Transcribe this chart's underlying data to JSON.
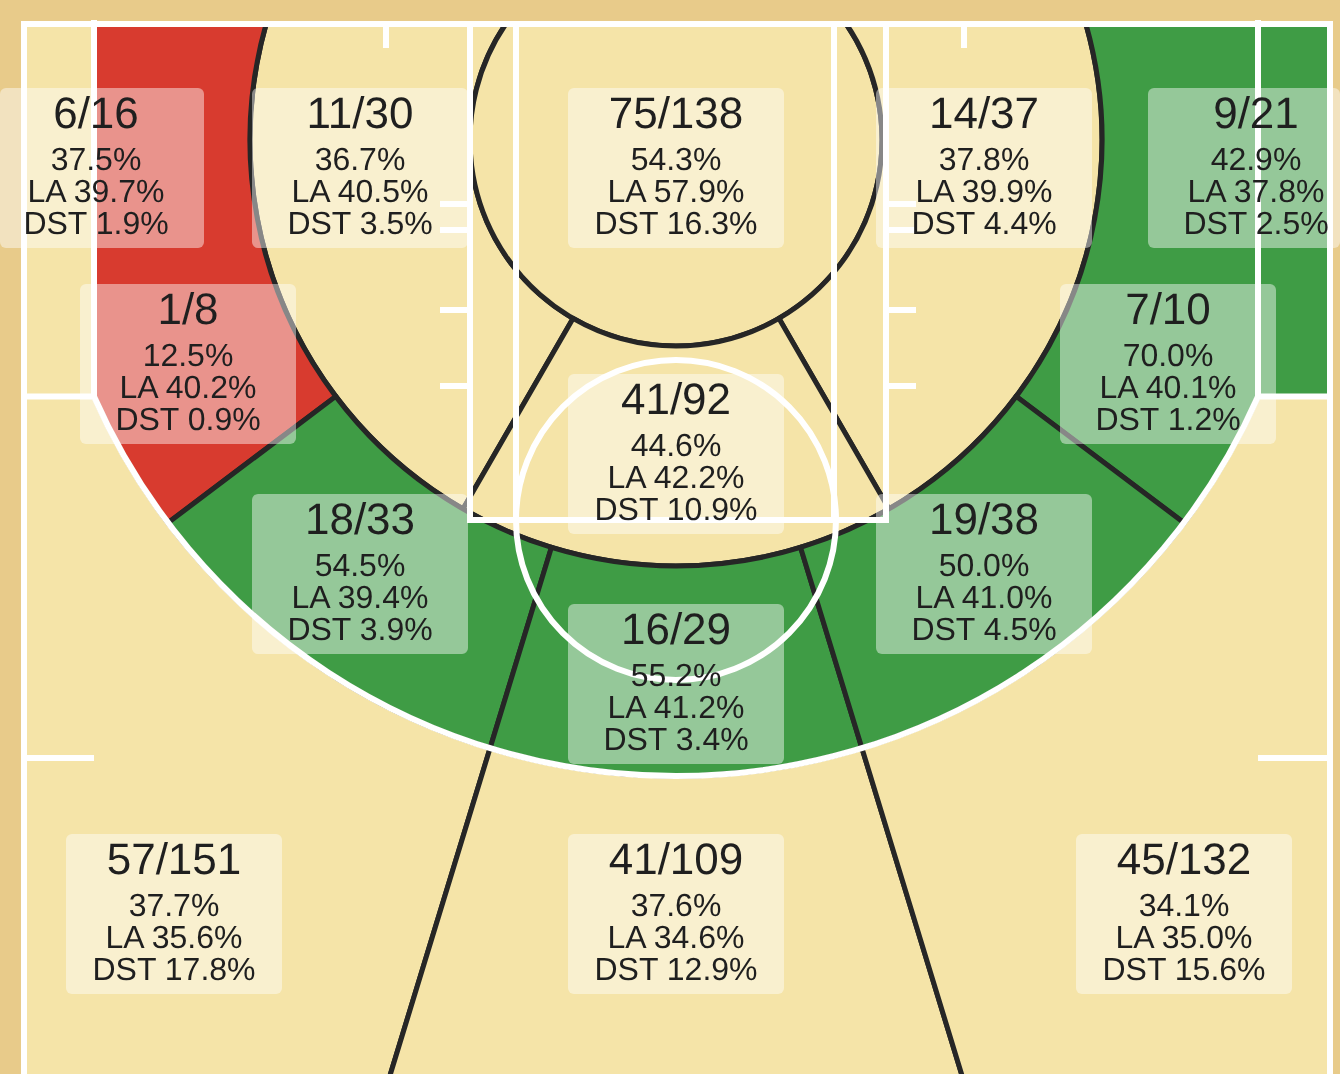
{
  "chart_data": {
    "type": "other",
    "categories": [
      "6/16",
      "11/30",
      "75/138",
      "14/37",
      "9/21",
      "1/8",
      "41/92",
      "7/10",
      "18/33",
      "16/29",
      "19/38",
      "57/151",
      "41/109",
      "45/132"
    ],
    "colors": [
      "#f5e4a8",
      "#f5e4a8",
      "#f5e4a8",
      "#f5e4a8",
      "#3f9c45",
      "#d83b2f",
      "#f5e4a8",
      "#3f9c45",
      "#3f9c45",
      "#3f9c45",
      "#3f9c45",
      "#f5e4a8",
      "#f5e4a8",
      "#f5e4a8"
    ],
    "series": [
      {
        "values": [
          37.5,
          36.7,
          54.3,
          37.8,
          42.9,
          12.5,
          44.6,
          70.0,
          54.5,
          55.2,
          50.0,
          37.7,
          37.6,
          34.1
        ],
        "value_labels": [
          "37.5%",
          "36.7%",
          "54.3%",
          "37.8%",
          "42.9%",
          "12.5%",
          "44.6%",
          "70.0%",
          "54.5%",
          "55.2%",
          "50.0%",
          "37.7%",
          "37.6%",
          "34.1%"
        ]
      },
      {
        "color": "#1f1f1f",
        "values": [
          39.7,
          40.5,
          57.9,
          39.9,
          37.8,
          40.2,
          42.2,
          40.1,
          39.4,
          41.2,
          41.0,
          35.6,
          34.6,
          35.0
        ],
        "value_labels": [
          "LA 39.7%",
          "LA 40.5%",
          "LA 57.9%",
          "LA 39.9%",
          "LA 37.8%",
          "LA 40.2%",
          "LA 42.2%",
          "LA 40.1%",
          "LA 39.4%",
          "LA 41.2%",
          "LA 41.0%",
          "LA 35.6%",
          "LA 34.6%",
          "LA 35.0%"
        ]
      },
      {
        "color": "#1f1f1f",
        "values": [
          1.9,
          3.5,
          16.3,
          4.4,
          2.5,
          0.9,
          10.9,
          1.2,
          3.9,
          3.4,
          4.5,
          17.8,
          12.9,
          15.6
        ],
        "value_labels": [
          "DST 1.9%",
          "DST 3.5%",
          "DST 16.3%",
          "DST 4.4%",
          "DST 2.5%",
          "DST 0.9%",
          "DST 10.9%",
          "DST 1.2%",
          "DST 3.9%",
          "DST 3.4%",
          "DST 4.5%",
          "DST 17.8%",
          "DST 12.9%",
          "DST 15.6%"
        ]
      }
    ]
  }
}
